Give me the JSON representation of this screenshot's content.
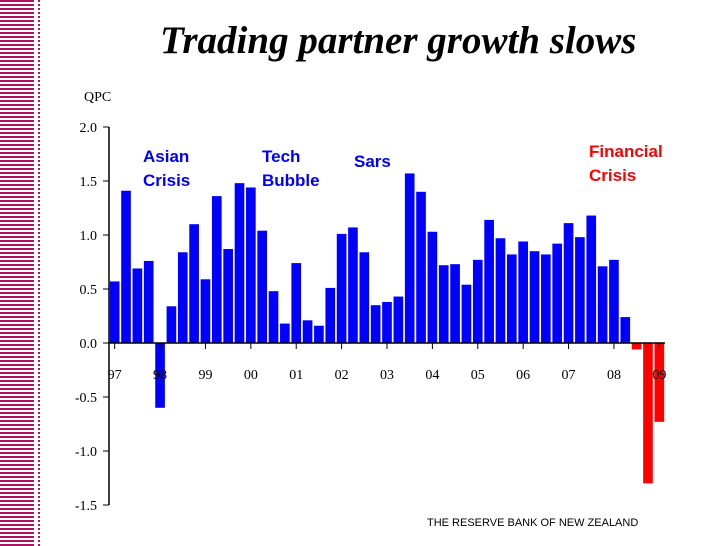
{
  "title": "Trading partner growth slows",
  "footer": "THE RESERVE BANK OF NEW ZEALAND",
  "colors": {
    "bar": "#0000ff",
    "recent_bar": "#ff0000",
    "blue_text": "#0000ff",
    "red_text": "#ff0000",
    "stripe": "#b01060"
  },
  "chart_data": {
    "type": "bar",
    "title": "Trading partner growth slows",
    "ylabel": "QPC",
    "xlabel": "",
    "ylim": [
      -1.5,
      2.0
    ],
    "yticks": [
      2.0,
      1.5,
      1.0,
      0.5,
      0.0,
      -0.5,
      -1.0,
      -1.5
    ],
    "ytick_labels": [
      "2.0",
      "1.5",
      "1.0",
      "0.5",
      "0.0",
      "-0.5",
      "-1.0",
      "-1.5"
    ],
    "year_labels": [
      "97",
      "98",
      "99",
      "00",
      "01",
      "02",
      "03",
      "04",
      "05",
      "06",
      "07",
      "08",
      "09"
    ],
    "grid": false,
    "values": [
      0.57,
      1.41,
      0.69,
      0.76,
      -0.6,
      0.34,
      0.84,
      1.1,
      0.59,
      1.36,
      0.87,
      1.48,
      1.44,
      1.04,
      0.48,
      0.18,
      0.74,
      0.21,
      0.16,
      0.51,
      1.01,
      1.07,
      0.84,
      0.35,
      0.38,
      0.43,
      1.57,
      1.4,
      1.03,
      0.72,
      0.73,
      0.54,
      0.77,
      1.14,
      0.97,
      0.82,
      0.94,
      0.85,
      0.82,
      0.92,
      1.11,
      0.98,
      1.18,
      0.71,
      0.77,
      0.24,
      -0.06,
      -1.3,
      -0.73
    ],
    "highlighted_start_index": 46,
    "annotations": [
      {
        "text": "Asian\nCrisis",
        "color": "blue"
      },
      {
        "text": "Tech\nBubble",
        "color": "blue"
      },
      {
        "text": "Sars",
        "color": "blue"
      },
      {
        "text": "Financial\nCrisis",
        "color": "red"
      }
    ]
  }
}
